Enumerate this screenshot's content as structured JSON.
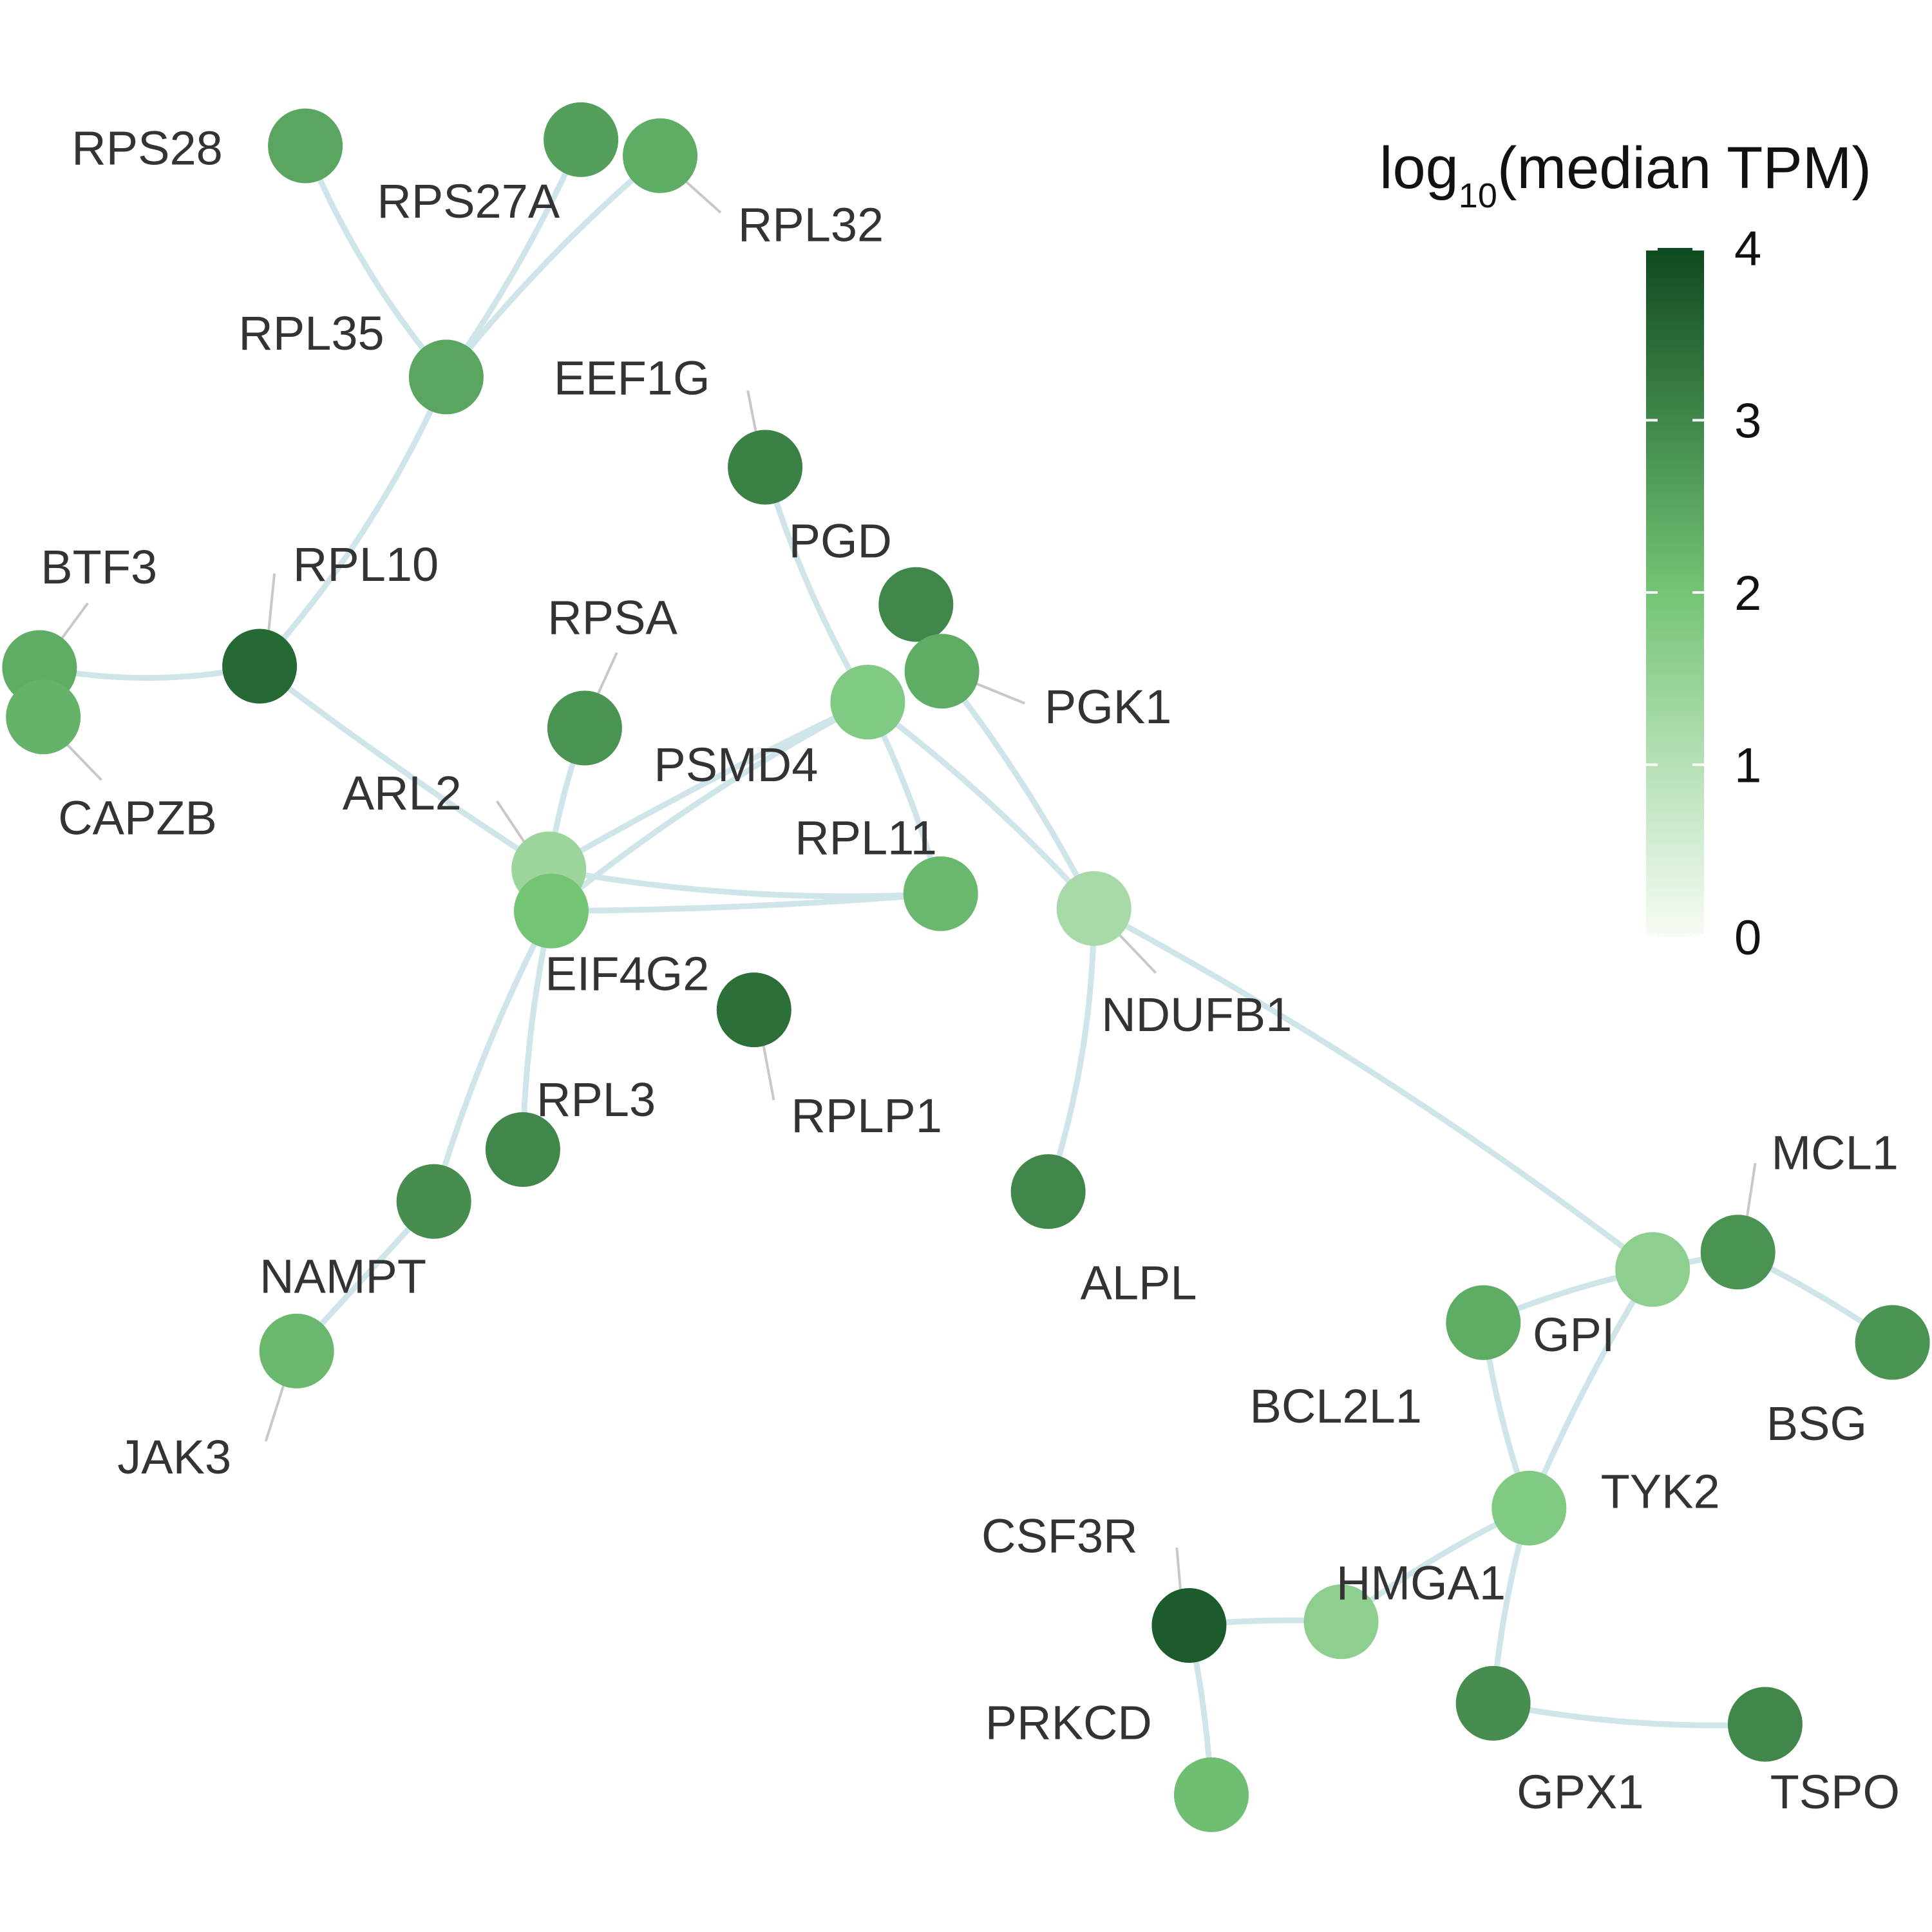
{
  "legend": {
    "title_prefix": "log",
    "title_subscript": "10",
    "title_suffix": "(median TPM)",
    "ticks": [
      "0",
      "1",
      "2",
      "3",
      "4"
    ],
    "range": [
      0,
      4
    ],
    "color_low": "#f7fcf5",
    "color_mid": "#74c476",
    "color_high": "#0d4a1f"
  },
  "colors": {
    "edge": "#cfe5ea",
    "label": "#333333",
    "leader": "#c8c8c8"
  },
  "nodes": [
    {
      "id": "RPS28",
      "value": 2.5
    },
    {
      "id": "RPS27A",
      "value": 2.6
    },
    {
      "id": "RPL32",
      "value": 2.4
    },
    {
      "id": "RPL35",
      "value": 2.5
    },
    {
      "id": "EEF1G",
      "value": 3.1
    },
    {
      "id": "BTF3",
      "value": 2.4
    },
    {
      "id": "RPL10",
      "value": 3.5
    },
    {
      "id": "CAPZB",
      "value": 2.3
    },
    {
      "id": "RPSA",
      "value": 2.8
    },
    {
      "id": "PGD",
      "value": 3.0
    },
    {
      "id": "PGK1",
      "value": 2.4
    },
    {
      "id": "PSMD4",
      "value": 1.8
    },
    {
      "id": "ARL2",
      "value": 1.4
    },
    {
      "id": "EIF4G2",
      "value": 2.0
    },
    {
      "id": "RPL11",
      "value": 2.2
    },
    {
      "id": "NDUFB1",
      "value": 1.2
    },
    {
      "id": "RPLP1",
      "value": 3.4
    },
    {
      "id": "RPL3",
      "value": 3.0
    },
    {
      "id": "NAMPT",
      "value": 2.9
    },
    {
      "id": "JAK3",
      "value": 2.2
    },
    {
      "id": "ALPL",
      "value": 3.0
    },
    {
      "id": "MCL1",
      "value": 2.8
    },
    {
      "id": "GPI",
      "value": 1.6
    },
    {
      "id": "BCL2L1",
      "value": 2.4
    },
    {
      "id": "BSG",
      "value": 2.8
    },
    {
      "id": "TYK2",
      "value": 1.8
    },
    {
      "id": "CSF3R",
      "value": 3.7
    },
    {
      "id": "HMGA1",
      "value": 1.6
    },
    {
      "id": "GPX1",
      "value": 2.9
    },
    {
      "id": "TSPO",
      "value": 3.0
    },
    {
      "id": "PRKCD",
      "value": 2.1
    }
  ],
  "edges": [
    [
      "RPS28",
      "RPL35"
    ],
    [
      "RPS27A",
      "RPL35"
    ],
    [
      "RPL32",
      "RPL35"
    ],
    [
      "RPL35",
      "RPL10"
    ],
    [
      "BTF3",
      "RPL10"
    ],
    [
      "RPL10",
      "ARL2"
    ],
    [
      "EEF1G",
      "PSMD4"
    ],
    [
      "PSMD4",
      "EIF4G2"
    ],
    [
      "PSMD4",
      "ARL2"
    ],
    [
      "PSMD4",
      "RPL11"
    ],
    [
      "PSMD4",
      "NDUFB1"
    ],
    [
      "PGK1",
      "NDUFB1"
    ],
    [
      "RPSA",
      "ARL2"
    ],
    [
      "ARL2",
      "RPL11"
    ],
    [
      "EIF4G2",
      "RPL11"
    ],
    [
      "EIF4G2",
      "RPL3"
    ],
    [
      "EIF4G2",
      "NAMPT"
    ],
    [
      "NAMPT",
      "JAK3"
    ],
    [
      "NDUFB1",
      "ALPL"
    ],
    [
      "NDUFB1",
      "GPI"
    ],
    [
      "GPI",
      "MCL1"
    ],
    [
      "GPI",
      "BCL2L1"
    ],
    [
      "GPI",
      "TYK2"
    ],
    [
      "MCL1",
      "BSG"
    ],
    [
      "BCL2L1",
      "TYK2"
    ],
    [
      "TYK2",
      "HMGA1"
    ],
    [
      "TYK2",
      "GPX1"
    ],
    [
      "HMGA1",
      "CSF3R"
    ],
    [
      "CSF3R",
      "PRKCD"
    ],
    [
      "GPX1",
      "TSPO"
    ]
  ]
}
